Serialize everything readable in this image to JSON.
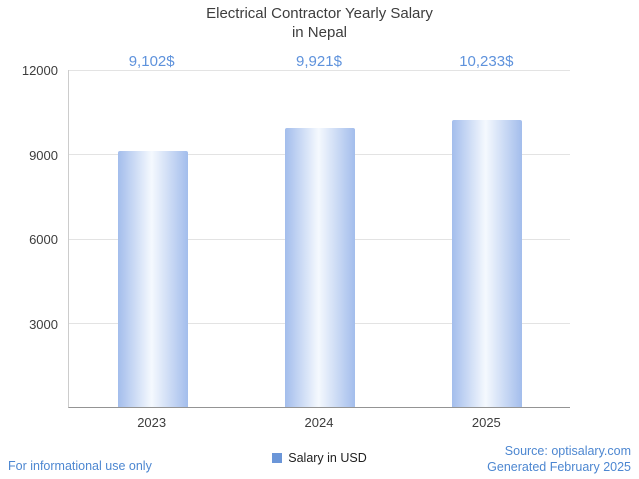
{
  "title": {
    "line1": "Electrical Contractor Yearly Salary",
    "line2": "in Nepal"
  },
  "chart_data": {
    "type": "bar",
    "title": "Electrical Contractor Yearly Salary in Nepal",
    "categories": [
      "2023",
      "2024",
      "2025"
    ],
    "values": [
      9102,
      9921,
      10233
    ],
    "value_labels": [
      "9,102$",
      "9,921$",
      "10,233$"
    ],
    "series_name": "Salary in USD",
    "xlabel": "",
    "ylabel": "",
    "ylim": [
      0,
      12000
    ],
    "yticks": [
      3000,
      6000,
      9000,
      12000
    ],
    "grid": true,
    "legend_position": "bottom-center"
  },
  "legend": {
    "label": "Salary in USD"
  },
  "footer": {
    "left": "For informational use only",
    "source": "Source: optisalary.com",
    "generated": "Generated February 2025"
  },
  "colors": {
    "accent_text": "#5e92dc",
    "title_color": "#3d3d3d",
    "bar_edge": "#a3bdec",
    "bar_mid": "#f5f9fe",
    "legend_square": "#6b96d8",
    "grid": "#e3e3e3",
    "axis_left": "#cccccc",
    "axis_bottom": "#949494",
    "footer_blue": "#4d87d1"
  }
}
